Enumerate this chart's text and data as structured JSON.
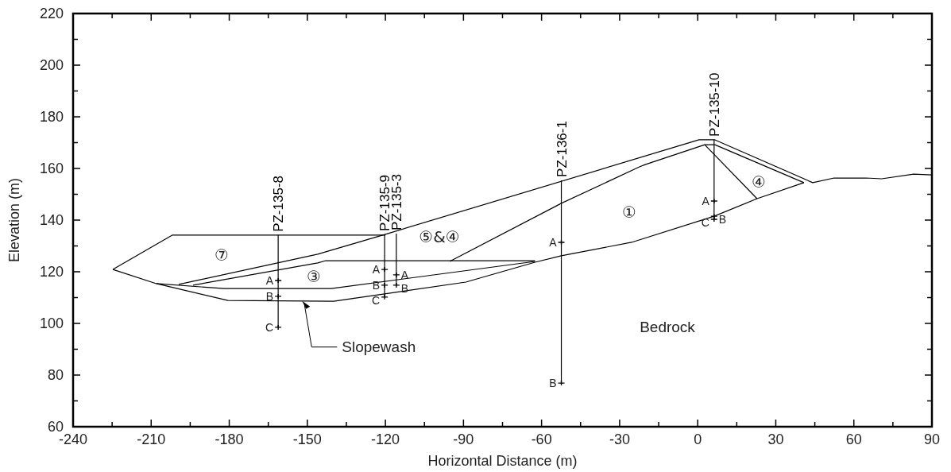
{
  "chart_data": {
    "type": "line",
    "xlabel": "Horizontal Distance (m)",
    "ylabel": "Elevation (m)",
    "xlim": [
      -240,
      90
    ],
    "ylim": [
      60,
      220
    ],
    "xticks": [
      -240,
      {
        "value": -225,
        "label": null
      },
      -210,
      {
        "value": -195,
        "label": null
      },
      -180,
      {
        "value": -165,
        "label": null
      },
      -150,
      {
        "value": -135,
        "label": null
      },
      -120,
      {
        "value": -105,
        "label": null
      },
      -90,
      {
        "value": -75,
        "label": null
      },
      -60,
      {
        "value": -45,
        "label": null
      },
      -30,
      {
        "value": -15,
        "label": null
      },
      0,
      {
        "value": 15,
        "label": null
      },
      30,
      {
        "value": 45,
        "label": null
      },
      60,
      {
        "value": 75,
        "label": null
      },
      90
    ],
    "yticks": [
      60,
      {
        "value": 70,
        "label": null
      },
      80,
      {
        "value": 90,
        "label": null
      },
      100,
      {
        "value": 110,
        "label": null
      },
      120,
      {
        "value": 130,
        "label": null
      },
      140,
      {
        "value": 150,
        "label": null
      },
      160,
      {
        "value": 170,
        "label": null
      },
      180,
      {
        "value": 190,
        "label": null
      },
      200,
      {
        "value": 210,
        "label": null
      },
      220
    ],
    "grid": false,
    "line_style": "solid",
    "series": [
      {
        "color": "#000000",
        "x": [
          -224.7,
          -201.8,
          -120
        ],
        "values": [
          120.9,
          134.2,
          134.2
        ]
      },
      {
        "color": "#000000",
        "x": [
          -199.4,
          -146,
          -120,
          0.5,
          6.6,
          44.2,
          52.4,
          64.6,
          70.7,
          83,
          90
        ],
        "values": [
          115.1,
          126.8,
          134.5,
          171.1,
          171.1,
          154.5,
          156.3,
          156.3,
          156,
          157.8,
          157.5
        ]
      },
      {
        "color": "#000000",
        "x": [
          -224.7,
          -208,
          -180.5,
          -139.9,
          -89.1,
          -62.5,
          -52.4,
          -25.4,
          6.3,
          22.8,
          40.8
        ],
        "values": [
          120.9,
          115.4,
          108.9,
          108.6,
          116,
          123.7,
          126.2,
          131.4,
          141.5,
          148.3,
          154.5
        ]
      },
      {
        "color": "#000000",
        "x": [
          -208,
          -182,
          -140.8,
          -62.5
        ],
        "values": [
          115.4,
          113.5,
          113.5,
          124
        ]
      },
      {
        "color": "#000000",
        "x": [
          -193.9,
          -146,
          -142.9,
          -62.5
        ],
        "values": [
          114.8,
          123.4,
          124.3,
          124.3
        ]
      },
      {
        "color": "#000000",
        "x": [
          -95.3,
          -52.4,
          -22.4,
          -20.2,
          2.7,
          6.6,
          40.8
        ],
        "values": [
          124,
          146.5,
          160.6,
          161.5,
          169.2,
          169.2,
          154.5
        ]
      },
      {
        "color": "#000000",
        "x": [
          2.7,
          22.8
        ],
        "values": [
          169.2,
          148.3
        ]
      },
      {
        "name": "PZ-135-8",
        "color": "#000000",
        "x": [
          -161.2,
          -161.2
        ],
        "values": [
          134.2,
          98.5
        ]
      },
      {
        "name": "PZ-135-9",
        "color": "#000000",
        "x": [
          -120.3,
          -120.3
        ],
        "values": [
          134.5,
          110.2
        ]
      },
      {
        "name": "PZ-135-3",
        "color": "#000000",
        "x": [
          -115.8,
          -115.8
        ],
        "values": [
          134.8,
          114.8
        ]
      },
      {
        "name": "PZ-136-1",
        "color": "#000000",
        "x": [
          -52.4,
          -52.4
        ],
        "values": [
          155.4,
          76.9
        ]
      },
      {
        "name": "PZ-135-10",
        "color": "#000000",
        "x": [
          6.3,
          6.3
        ],
        "values": [
          171.1,
          140.3
        ]
      },
      {
        "type": "scatter",
        "marker": "cross",
        "color": "#000000",
        "x": [
          -161.2,
          -161.2,
          -161.2,
          -120.3,
          -120.3,
          -120.3,
          -115.8,
          -115.8,
          -52.4,
          -52.4,
          6.3,
          6.3,
          6.3
        ],
        "values": [
          116.6,
          110.5,
          98.5,
          120.9,
          114.8,
          110.2,
          118.8,
          114.8,
          131.4,
          76.9,
          147.4,
          141.5,
          140.3
        ],
        "value_labels": [
          "A",
          "B",
          "C",
          "A",
          "B",
          "C",
          "A",
          "B",
          "A",
          "B",
          "A",
          "B",
          "C"
        ]
      }
    ],
    "annotations": [
      "⑦",
      "③",
      "⑤&④",
      "①",
      "④",
      "Bedrock",
      {
        "text": "Slopewash",
        "x": -152,
        "y": 108.7
      }
    ]
  }
}
